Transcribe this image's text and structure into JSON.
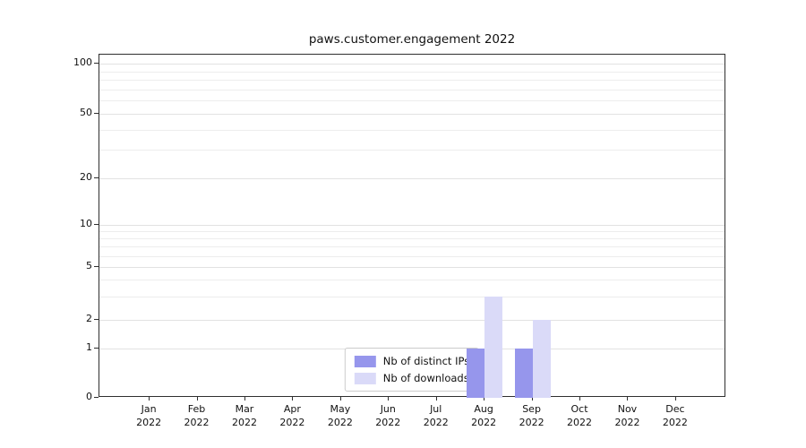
{
  "chart_data": {
    "type": "bar",
    "title": "paws.customer.engagement 2022",
    "categories": [
      "Jan 2022",
      "Feb 2022",
      "Mar 2022",
      "Apr 2022",
      "May 2022",
      "Jun 2022",
      "Jul 2022",
      "Aug 2022",
      "Sep 2022",
      "Oct 2022",
      "Nov 2022",
      "Dec 2022"
    ],
    "series": [
      {
        "name": "Nb of distinct IPs",
        "color": "#9696ec",
        "values": [
          0,
          0,
          0,
          0,
          0,
          0,
          0,
          1,
          1,
          0,
          0,
          0
        ]
      },
      {
        "name": "Nb of downloads",
        "color": "#dadaf8",
        "values": [
          0,
          0,
          0,
          0,
          0,
          0,
          0,
          3,
          2,
          0,
          0,
          0
        ]
      }
    ],
    "yticks": [
      0,
      1,
      2,
      5,
      10,
      20,
      50,
      100
    ],
    "yscale": "symlog",
    "grid": "horizontal",
    "legend_position": "lower center"
  }
}
